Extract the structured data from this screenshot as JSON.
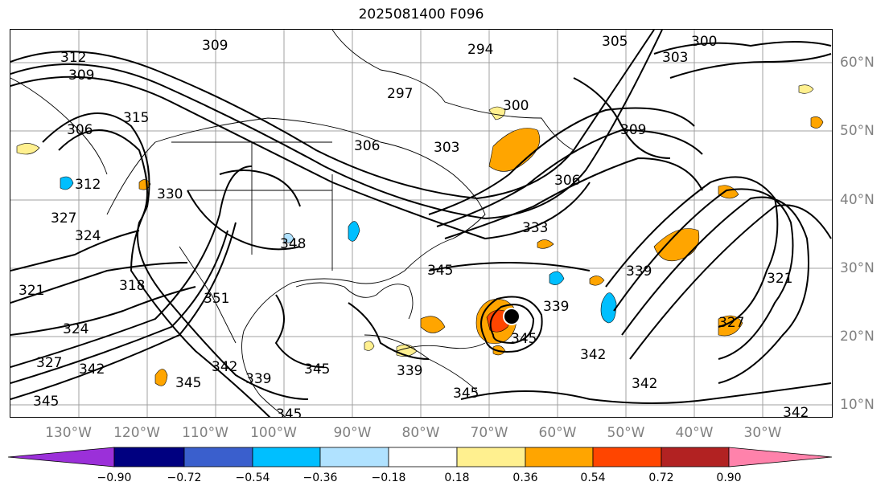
{
  "title": "2025081400 F096",
  "lon_labels": [
    "130°W",
    "120°W",
    "110°W",
    "100°W",
    "90°W",
    "80°W",
    "70°W",
    "60°W",
    "50°W",
    "40°W",
    "30°W"
  ],
  "lat_labels": [
    "60°N",
    "50°N",
    "40°N",
    "30°N",
    "20°N",
    "10°N"
  ],
  "colorbar": {
    "ticks": [
      "−0.90",
      "−0.72",
      "−0.54",
      "−0.36",
      "−0.18",
      "0.18",
      "0.36",
      "0.54",
      "0.72",
      "0.90"
    ],
    "colors": [
      "#9b30d9",
      "#000080",
      "#3a5fcd",
      "#00bfff",
      "#b0e2ff",
      "#ffffff",
      "#fff08f",
      "#ffa500",
      "#ff4500",
      "#b22222",
      "#ff82ab"
    ]
  },
  "contour_labels": [
    "309",
    "312",
    "309",
    "306",
    "315",
    "312",
    "324",
    "327",
    "330",
    "318",
    "321",
    "324",
    "327",
    "342",
    "345",
    "342",
    "351",
    "339",
    "345",
    "345",
    "339",
    "345",
    "348",
    "345",
    "345",
    "339",
    "345",
    "303",
    "297",
    "294",
    "300",
    "306",
    "309",
    "305",
    "300",
    "303",
    "333",
    "339",
    "342",
    "342",
    "327",
    "321",
    "342",
    "306"
  ]
}
